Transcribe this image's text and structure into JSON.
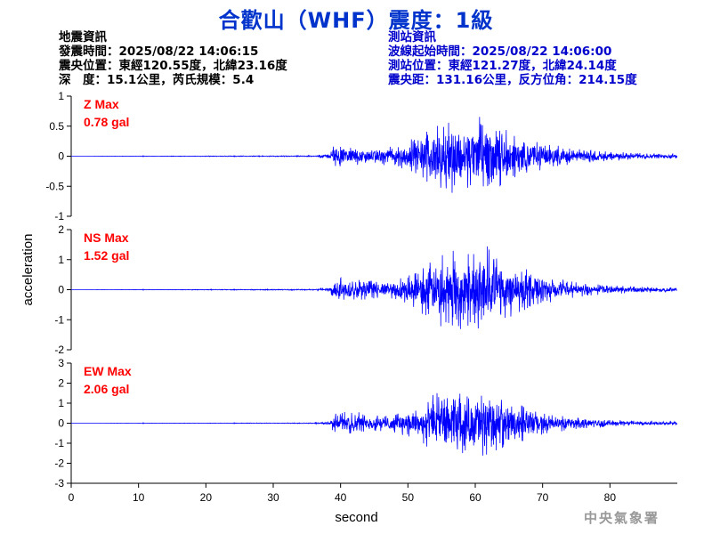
{
  "title": "合歡山（WHF）震度：1級",
  "info_left": {
    "header": "地震資訊",
    "time": "發震時間：2025/08/22 14:06:15",
    "epicenter": "震央位置：東經120.55度，北緯23.16度",
    "depth_mag": "深　度：15.1公里，芮氏規模：5.4"
  },
  "info_right": {
    "header": "測站資訊",
    "wave_start": "波線起始時間：2025/08/22 14:06:00",
    "station_loc": "測站位置：東經121.27度，北緯24.14度",
    "distance": "震央距：131.16公里，反方位角：214.15度"
  },
  "agency": "中央氣象署",
  "colors": {
    "trace": "#0000ff",
    "max_label": "#ff0000",
    "title": "#0033cc",
    "info_right": "#0000cc"
  },
  "chart_data": {
    "type": "line",
    "xlabel": "second",
    "ylabel": "acceleration",
    "xlim": [
      0,
      90
    ],
    "xticks": [
      0,
      10,
      20,
      30,
      40,
      50,
      60,
      70,
      80
    ],
    "x_values_seconds": [
      0,
      36,
      38.5,
      39,
      42,
      45,
      48,
      51,
      54,
      57,
      60,
      62,
      63,
      65,
      68,
      71,
      75,
      80,
      85,
      90
    ],
    "panels": [
      {
        "name": "Z",
        "max_label": "Z Max",
        "max_value": "0.78 gal",
        "ylim": [
          -1,
          1
        ],
        "yticks": [
          1,
          0.5,
          0,
          -0.5,
          -1
        ],
        "ytick_labels": [
          "1",
          "0.5",
          "0",
          "-0.5",
          "-1"
        ],
        "envelope": [
          0,
          0.01,
          0.05,
          0.2,
          0.15,
          0.12,
          0.18,
          0.3,
          0.55,
          0.65,
          0.6,
          0.78,
          0.6,
          0.45,
          0.3,
          0.2,
          0.12,
          0.08,
          0.05,
          0.04
        ]
      },
      {
        "name": "NS",
        "max_label": "NS Max",
        "max_value": "1.52 gal",
        "ylim": [
          -2,
          2
        ],
        "yticks": [
          2,
          1,
          0,
          -1,
          -2
        ],
        "ytick_labels": [
          "2",
          "1",
          "0",
          "-1",
          "-2"
        ],
        "envelope": [
          0,
          0.02,
          0.1,
          0.45,
          0.4,
          0.3,
          0.35,
          0.6,
          1.2,
          1.35,
          1.25,
          1.52,
          1.2,
          1.0,
          0.7,
          0.45,
          0.25,
          0.15,
          0.1,
          0.08
        ]
      },
      {
        "name": "EW",
        "max_label": "EW Max",
        "max_value": "2.06 gal",
        "ylim": [
          -3,
          3
        ],
        "yticks": [
          3,
          2,
          1,
          0,
          -1,
          -2,
          -3
        ],
        "ytick_labels": [
          "3",
          "2",
          "1",
          "0",
          "-1",
          "-2",
          "-3"
        ],
        "envelope": [
          0,
          0.02,
          0.1,
          0.55,
          0.6,
          0.4,
          0.5,
          0.8,
          1.5,
          1.6,
          1.5,
          2.06,
          1.4,
          1.1,
          0.8,
          0.5,
          0.3,
          0.18,
          0.12,
          0.1
        ]
      }
    ]
  }
}
